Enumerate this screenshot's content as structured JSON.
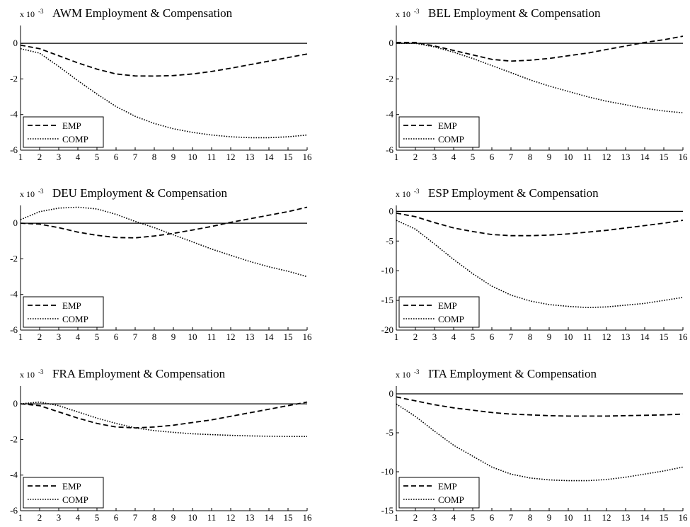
{
  "figure": {
    "x_ticks": [
      "1",
      "2",
      "3",
      "4",
      "5",
      "6",
      "7",
      "8",
      "9",
      "10",
      "11",
      "12",
      "13",
      "14",
      "15",
      "16"
    ]
  },
  "chart_data": [
    {
      "type": "line",
      "title": "AWM Employment & Compensation",
      "scale_text": "x 10",
      "scale_exponent": "-3",
      "x": [
        1,
        2,
        3,
        4,
        5,
        6,
        7,
        8,
        9,
        10,
        11,
        12,
        13,
        14,
        15,
        16
      ],
      "xlim": [
        1,
        16
      ],
      "ylim": [
        -6,
        1
      ],
      "yticks": [
        0,
        -2,
        -4,
        -6
      ],
      "zero_line": true,
      "legend": "bottom-left",
      "series": [
        {
          "name": "EMP",
          "style": "dashed",
          "values": [
            -0.1,
            -0.3,
            -0.7,
            -1.1,
            -1.45,
            -1.72,
            -1.83,
            -1.84,
            -1.81,
            -1.72,
            -1.58,
            -1.4,
            -1.2,
            -1.0,
            -0.8,
            -0.6
          ]
        },
        {
          "name": "COMP",
          "style": "dotted",
          "values": [
            -0.3,
            -0.55,
            -1.3,
            -2.1,
            -2.85,
            -3.55,
            -4.1,
            -4.5,
            -4.8,
            -5.0,
            -5.15,
            -5.25,
            -5.3,
            -5.3,
            -5.25,
            -5.15
          ]
        }
      ]
    },
    {
      "type": "line",
      "title": "BEL Employment & Compensation",
      "scale_text": "x 10",
      "scale_exponent": "-3",
      "x": [
        1,
        2,
        3,
        4,
        5,
        6,
        7,
        8,
        9,
        10,
        11,
        12,
        13,
        14,
        15,
        16
      ],
      "xlim": [
        1,
        16
      ],
      "ylim": [
        -6,
        1
      ],
      "yticks": [
        0,
        -2,
        -4,
        -6
      ],
      "zero_line": true,
      "legend": "bottom-left",
      "series": [
        {
          "name": "EMP",
          "style": "dashed",
          "values": [
            0.05,
            0.05,
            -0.15,
            -0.4,
            -0.65,
            -0.9,
            -1.0,
            -0.95,
            -0.85,
            -0.7,
            -0.55,
            -0.35,
            -0.15,
            0.05,
            0.2,
            0.4
          ]
        },
        {
          "name": "COMP",
          "style": "dotted",
          "values": [
            0.0,
            0.0,
            -0.2,
            -0.5,
            -0.85,
            -1.25,
            -1.65,
            -2.05,
            -2.4,
            -2.7,
            -3.0,
            -3.25,
            -3.45,
            -3.65,
            -3.8,
            -3.9
          ]
        }
      ]
    },
    {
      "type": "line",
      "title": "DEU Employment & Compensation",
      "scale_text": "x 10",
      "scale_exponent": "-3",
      "x": [
        1,
        2,
        3,
        4,
        5,
        6,
        7,
        8,
        9,
        10,
        11,
        12,
        13,
        14,
        15,
        16
      ],
      "xlim": [
        1,
        16
      ],
      "ylim": [
        -6,
        1
      ],
      "yticks": [
        0,
        -2,
        -4,
        -6
      ],
      "zero_line": true,
      "legend": "bottom-left",
      "series": [
        {
          "name": "EMP",
          "style": "dashed",
          "values": [
            0.0,
            -0.05,
            -0.25,
            -0.5,
            -0.68,
            -0.8,
            -0.82,
            -0.72,
            -0.57,
            -0.38,
            -0.18,
            0.05,
            0.25,
            0.45,
            0.65,
            0.9
          ]
        },
        {
          "name": "COMP",
          "style": "dotted",
          "values": [
            0.2,
            0.65,
            0.85,
            0.9,
            0.8,
            0.5,
            0.1,
            -0.25,
            -0.65,
            -1.05,
            -1.45,
            -1.8,
            -2.15,
            -2.45,
            -2.7,
            -3.0
          ]
        }
      ]
    },
    {
      "type": "line",
      "title": "ESP Employment & Compensation",
      "scale_text": "x 10",
      "scale_exponent": "-3",
      "x": [
        1,
        2,
        3,
        4,
        5,
        6,
        7,
        8,
        9,
        10,
        11,
        12,
        13,
        14,
        15,
        16
      ],
      "xlim": [
        1,
        16
      ],
      "ylim": [
        -20,
        1
      ],
      "yticks": [
        0,
        -5,
        -10,
        -15,
        -20
      ],
      "zero_line": true,
      "legend": "bottom-left",
      "series": [
        {
          "name": "EMP",
          "style": "dashed",
          "values": [
            -0.3,
            -0.9,
            -1.9,
            -2.8,
            -3.4,
            -3.9,
            -4.1,
            -4.1,
            -4.0,
            -3.8,
            -3.5,
            -3.2,
            -2.8,
            -2.4,
            -2.0,
            -1.5
          ]
        },
        {
          "name": "COMP",
          "style": "dotted",
          "values": [
            -1.5,
            -3.0,
            -5.5,
            -8.1,
            -10.5,
            -12.6,
            -14.1,
            -15.1,
            -15.7,
            -16.0,
            -16.2,
            -16.1,
            -15.8,
            -15.5,
            -15.0,
            -14.5
          ]
        }
      ]
    },
    {
      "type": "line",
      "title": "FRA Employment & Compensation",
      "scale_text": "x 10",
      "scale_exponent": "-3",
      "x": [
        1,
        2,
        3,
        4,
        5,
        6,
        7,
        8,
        9,
        10,
        11,
        12,
        13,
        14,
        15,
        16
      ],
      "xlim": [
        1,
        16
      ],
      "ylim": [
        -6,
        1
      ],
      "yticks": [
        0,
        -2,
        -4,
        -6
      ],
      "zero_line": true,
      "legend": "bottom-left",
      "series": [
        {
          "name": "EMP",
          "style": "dashed",
          "values": [
            0.0,
            -0.1,
            -0.45,
            -0.8,
            -1.1,
            -1.3,
            -1.35,
            -1.3,
            -1.2,
            -1.05,
            -0.9,
            -0.7,
            -0.5,
            -0.3,
            -0.1,
            0.1
          ]
        },
        {
          "name": "COMP",
          "style": "dotted",
          "values": [
            0.0,
            0.1,
            -0.1,
            -0.45,
            -0.8,
            -1.1,
            -1.35,
            -1.5,
            -1.6,
            -1.68,
            -1.73,
            -1.77,
            -1.8,
            -1.82,
            -1.83,
            -1.83
          ]
        }
      ]
    },
    {
      "type": "line",
      "title": "ITA Employment & Compensation",
      "scale_text": "x 10",
      "scale_exponent": "-3",
      "x": [
        1,
        2,
        3,
        4,
        5,
        6,
        7,
        8,
        9,
        10,
        11,
        12,
        13,
        14,
        15,
        16
      ],
      "xlim": [
        1,
        16
      ],
      "ylim": [
        -15,
        1
      ],
      "yticks": [
        0,
        -5,
        -10,
        -15
      ],
      "zero_line": true,
      "legend": "bottom-left",
      "series": [
        {
          "name": "EMP",
          "style": "dashed",
          "values": [
            -0.4,
            -0.9,
            -1.4,
            -1.8,
            -2.1,
            -2.4,
            -2.6,
            -2.7,
            -2.8,
            -2.85,
            -2.85,
            -2.85,
            -2.8,
            -2.75,
            -2.7,
            -2.6
          ]
        },
        {
          "name": "COMP",
          "style": "dotted",
          "values": [
            -1.3,
            -2.9,
            -4.8,
            -6.6,
            -8.0,
            -9.4,
            -10.3,
            -10.8,
            -11.05,
            -11.15,
            -11.15,
            -11.0,
            -10.7,
            -10.3,
            -9.9,
            -9.4
          ]
        }
      ]
    }
  ]
}
